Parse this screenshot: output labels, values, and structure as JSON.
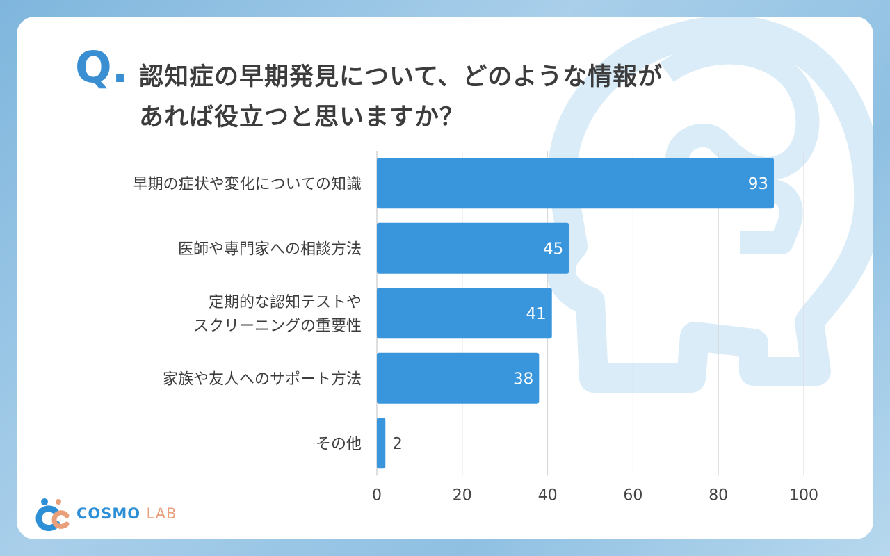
{
  "question_mark": "Q.",
  "title_line1": "認知症の早期発見について、どのような情報が",
  "title_line2": "あれば役立つと思いますか？",
  "logo": {
    "name": "COSMO",
    "suffix": "LAB"
  },
  "colors": {
    "bar": "#3a96dc",
    "accent": "#3a8fd3",
    "grid": "#d6d6d6"
  },
  "chart_data": {
    "type": "bar",
    "orientation": "horizontal",
    "categories": [
      [
        "早期の症状や変化についての知識"
      ],
      [
        "医師や専門家への相談方法"
      ],
      [
        "定期的な認知テストや",
        "スクリーニングの重要性"
      ],
      [
        "家族や友人へのサポート方法"
      ],
      [
        "その他"
      ]
    ],
    "values": [
      93,
      45,
      41,
      38,
      2
    ],
    "xlim": [
      0,
      100
    ],
    "xticks": [
      0,
      20,
      40,
      60,
      80,
      100
    ],
    "grid": true
  }
}
